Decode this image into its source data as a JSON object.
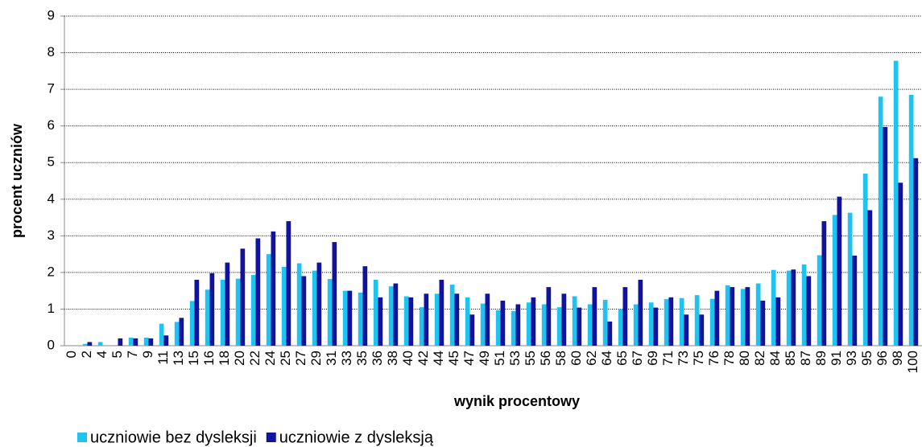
{
  "chart_data": {
    "type": "bar",
    "x_label": "wynik procentowy",
    "y_label": "procent uczniów",
    "categories": [
      "0",
      "2",
      "4",
      "5",
      "7",
      "9",
      "11",
      "13",
      "15",
      "16",
      "18",
      "20",
      "22",
      "24",
      "25",
      "27",
      "29",
      "31",
      "33",
      "35",
      "36",
      "38",
      "40",
      "42",
      "44",
      "45",
      "47",
      "49",
      "51",
      "53",
      "55",
      "56",
      "58",
      "60",
      "62",
      "64",
      "65",
      "67",
      "69",
      "71",
      "73",
      "75",
      "76",
      "78",
      "80",
      "82",
      "84",
      "85",
      "87",
      "89",
      "91",
      "93",
      "95",
      "96",
      "98",
      "100"
    ],
    "series": [
      {
        "name": "uczniowie bez dysleksji",
        "color": "#1ec3f2",
        "values": [
          0,
          0.05,
          0.1,
          0,
          0.22,
          0.22,
          0.6,
          0.65,
          1.22,
          1.53,
          1.8,
          1.83,
          1.93,
          2.5,
          2.15,
          2.25,
          2.05,
          1.82,
          1.5,
          1.45,
          1.8,
          1.62,
          1.35,
          1.05,
          1.42,
          1.67,
          1.32,
          1.15,
          0.97,
          0.95,
          1.18,
          1.13,
          1.05,
          1.35,
          1.13,
          1.25,
          1.0,
          1.13,
          1.18,
          1.27,
          1.3,
          1.38,
          1.28,
          1.65,
          1.55,
          1.7,
          2.07,
          2.05,
          2.22,
          2.47,
          3.57,
          3.63,
          4.7,
          6.8,
          7.78,
          6.85
        ]
      },
      {
        "name": "uczniowie z dysleksją",
        "color": "#12129c",
        "values": [
          0,
          0.1,
          0,
          0.2,
          0.2,
          0.2,
          0.28,
          0.76,
          1.8,
          1.98,
          2.27,
          2.65,
          2.93,
          3.12,
          3.4,
          1.9,
          2.27,
          2.83,
          1.5,
          2.17,
          1.32,
          1.7,
          1.32,
          1.42,
          1.8,
          1.42,
          0.85,
          1.42,
          1.23,
          1.13,
          1.32,
          1.6,
          1.42,
          1.04,
          1.6,
          0.66,
          1.6,
          1.8,
          1.04,
          1.32,
          0.85,
          0.85,
          1.5,
          1.6,
          1.6,
          1.23,
          1.32,
          2.08,
          1.9,
          3.4,
          4.07,
          2.46,
          3.7,
          5.97,
          4.45,
          5.12
        ]
      }
    ],
    "ylim": [
      0,
      9
    ],
    "yticks": [
      0,
      1,
      2,
      3,
      4,
      5,
      6,
      7,
      8,
      9
    ],
    "grid": true,
    "legend": "bottom-left"
  }
}
